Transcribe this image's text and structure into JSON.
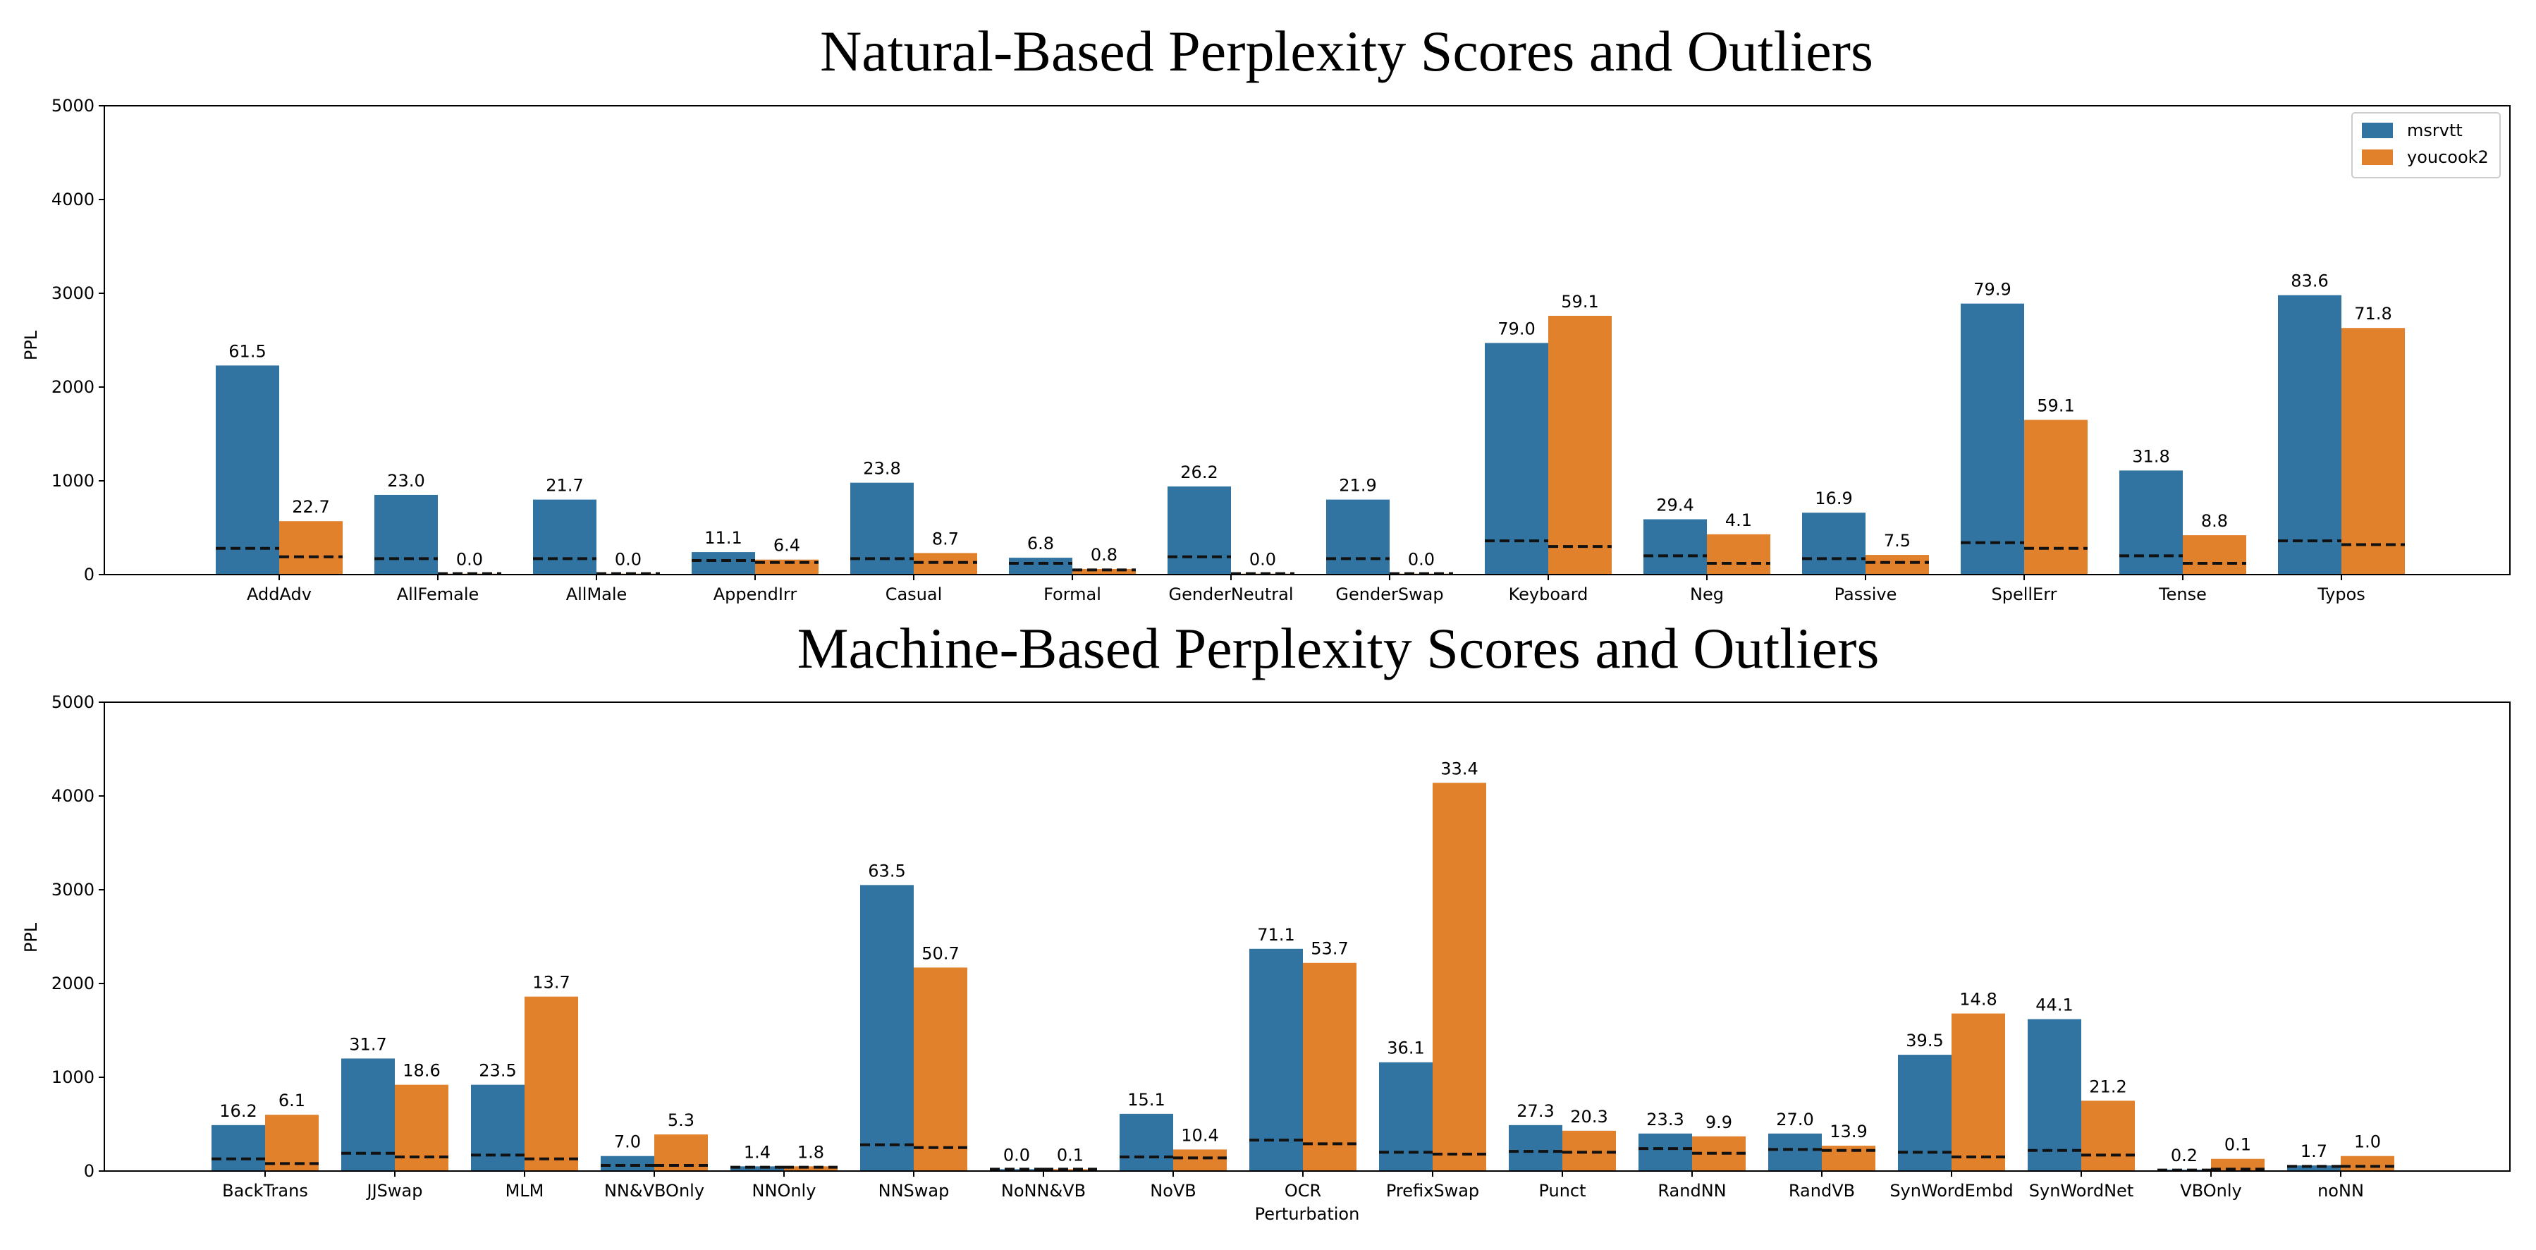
{
  "colors": {
    "msrvtt": "#3274a1",
    "youcook2": "#e1812c"
  },
  "chart_data": [
    {
      "type": "bar",
      "title": "Natural-Based Perplexity Scores and Outliers",
      "xlabel": "",
      "ylabel": "PPL",
      "ylim": [
        0,
        5000
      ],
      "yticks": [
        0,
        1000,
        2000,
        3000,
        4000,
        5000
      ],
      "legend": "top-right",
      "categories": [
        "AddAdv",
        "AllFemale",
        "AllMale",
        "AppendIrr",
        "Casual",
        "Formal",
        "GenderNeutral",
        "GenderSwap",
        "Keyboard",
        "Neg",
        "Passive",
        "SpellErr",
        "Tense",
        "Typos"
      ],
      "series": [
        {
          "name": "msrvtt",
          "values": [
            2230,
            850,
            800,
            240,
            980,
            180,
            940,
            800,
            2470,
            590,
            660,
            2890,
            1110,
            2980
          ],
          "labels": [
            "61.5",
            "23.0",
            "21.7",
            "11.1",
            "23.8",
            "6.8",
            "26.2",
            "21.9",
            "79.0",
            "29.4",
            "16.9",
            "79.9",
            "31.8",
            "83.6"
          ],
          "dashed": [
            280,
            170,
            170,
            150,
            170,
            120,
            190,
            170,
            360,
            200,
            170,
            340,
            200,
            360
          ]
        },
        {
          "name": "youcook2",
          "values": [
            570,
            10,
            10,
            160,
            230,
            60,
            10,
            10,
            2760,
            430,
            210,
            1650,
            420,
            2630
          ],
          "labels": [
            "22.7",
            "0.0",
            "0.0",
            "6.4",
            "8.7",
            "0.8",
            "0.0",
            "0.0",
            "59.1",
            "4.1",
            "7.5",
            "59.1",
            "8.8",
            "71.8"
          ],
          "dashed": [
            190,
            10,
            10,
            130,
            130,
            50,
            10,
            10,
            300,
            120,
            130,
            280,
            120,
            320
          ]
        }
      ]
    },
    {
      "type": "bar",
      "title": "Machine-Based Perplexity Scores and Outliers",
      "xlabel": "Perturbation",
      "ylabel": "PPL",
      "ylim": [
        0,
        5000
      ],
      "yticks": [
        0,
        1000,
        2000,
        3000,
        4000,
        5000
      ],
      "categories": [
        "BackTrans",
        "JJSwap",
        "MLM",
        "NN&VBOnly",
        "NNOnly",
        "NNSwap",
        "NoNN&VB",
        "NoVB",
        "OCR",
        "PrefixSwap",
        "Punct",
        "RandNN",
        "RandVB",
        "SynWordEmbd",
        "SynWordNet",
        "VBOnly",
        "noNN"
      ],
      "series": [
        {
          "name": "msrvtt",
          "values": [
            490,
            1200,
            920,
            160,
            50,
            3050,
            20,
            610,
            2370,
            1160,
            490,
            400,
            400,
            1240,
            1620,
            15,
            60
          ],
          "labels": [
            "16.2",
            "31.7",
            "23.5",
            "7.0",
            "1.4",
            "63.5",
            "0.0",
            "15.1",
            "71.1",
            "36.1",
            "27.3",
            "23.3",
            "27.0",
            "39.5",
            "44.1",
            "0.2",
            "1.7"
          ],
          "dashed": [
            130,
            190,
            170,
            60,
            40,
            280,
            20,
            150,
            330,
            200,
            210,
            240,
            230,
            200,
            220,
            10,
            50
          ]
        },
        {
          "name": "youcook2",
          "values": [
            600,
            920,
            1860,
            390,
            50,
            2170,
            20,
            230,
            2220,
            4140,
            430,
            370,
            270,
            1680,
            750,
            130,
            160
          ],
          "labels": [
            "6.1",
            "18.6",
            "13.7",
            "5.3",
            "1.8",
            "50.7",
            "0.1",
            "10.4",
            "53.7",
            "33.4",
            "20.3",
            "9.9",
            "13.9",
            "14.8",
            "21.2",
            "0.1",
            "1.0"
          ],
          "dashed": [
            80,
            150,
            130,
            60,
            40,
            250,
            20,
            140,
            290,
            180,
            200,
            190,
            220,
            150,
            170,
            20,
            50
          ]
        }
      ]
    }
  ]
}
